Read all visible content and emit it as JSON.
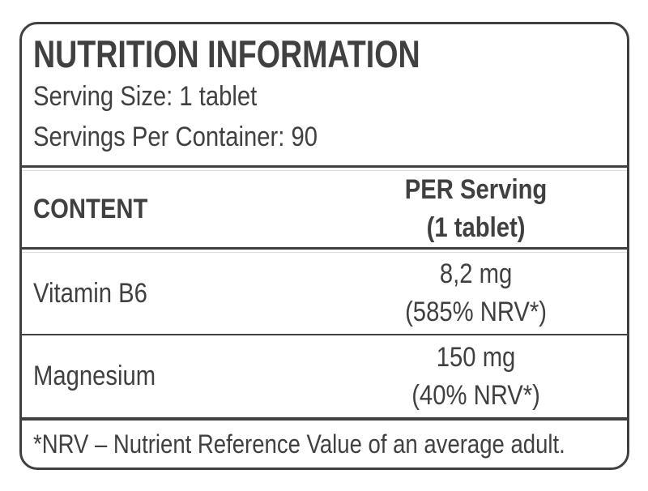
{
  "label": {
    "title": "NUTRITION INFORMATION",
    "serving_size": "Serving Size: 1 tablet",
    "servings_per_container": "Servings Per Container: 90",
    "table": {
      "header": {
        "content": "CONTENT",
        "per_serving_line1": "PER Serving",
        "per_serving_line2": "(1 tablet)"
      },
      "rows": [
        {
          "name": "Vitamin B6",
          "amount": "8,2 mg",
          "nrv": "(585% NRV*)"
        },
        {
          "name": "Magnesium",
          "amount": "150 mg",
          "nrv": "(40% NRV*)"
        }
      ]
    },
    "footnote": "*NRV – Nutrient Reference Value of an average adult.",
    "colors": {
      "text": "#404040",
      "border": "#404040",
      "background": "#ffffff",
      "hairline": "#dedede"
    }
  }
}
